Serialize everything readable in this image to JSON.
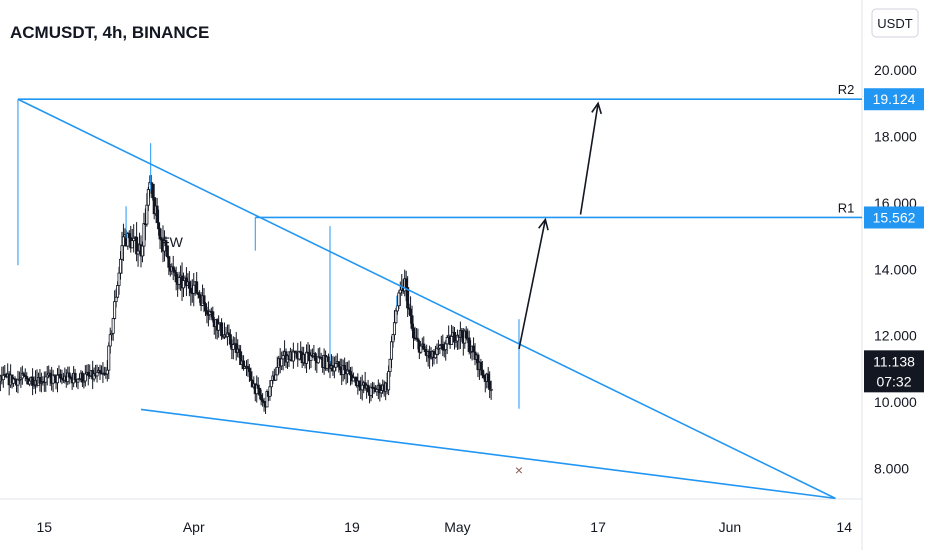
{
  "chart_data": {
    "type": "candlestick",
    "title": "ACMUSDT, 4h, BINANCE",
    "currency": "USDT",
    "y_axis": {
      "ticks": [
        "20.000",
        "18.000",
        "16.000",
        "14.000",
        "12.000",
        "10.000",
        "8.000"
      ],
      "tick_values": [
        20,
        18,
        16,
        14,
        12,
        10,
        8
      ],
      "range": [
        6.5,
        21.3
      ]
    },
    "x_axis": {
      "ticks": [
        "15",
        "Apr",
        "19",
        "May",
        "17",
        "Jun",
        "14"
      ],
      "tick_dates": [
        "2021-03-15",
        "2021-04-01",
        "2021-04-19",
        "2021-05-01",
        "2021-05-17",
        "2021-06-01",
        "2021-06-14"
      ],
      "range": [
        "2021-03-07",
        "2021-06-15"
      ]
    },
    "current_price": {
      "value": "11.138",
      "countdown": "07:32"
    },
    "pattern_label": "FW",
    "levels": [
      {
        "name": "R2",
        "value": "19.124",
        "start": "2021-03-12"
      },
      {
        "name": "R1",
        "value": "15.562",
        "start": "2021-04-08"
      }
    ],
    "trendlines": [
      {
        "name": "upper-trendline",
        "from": {
          "date": "2021-03-12",
          "price": 19.124
        },
        "to": {
          "date": "2021-06-13",
          "price": 7.1
        }
      },
      {
        "name": "lower-trendline",
        "from": {
          "date": "2021-03-26",
          "price": 9.78
        },
        "to": {
          "date": "2021-06-13",
          "price": 7.1
        }
      }
    ],
    "arrows": [
      {
        "from": {
          "date": "2021-05-08",
          "price": 11.6
        },
        "to": {
          "date": "2021-05-11",
          "price": 15.5
        }
      },
      {
        "from": {
          "date": "2021-05-15",
          "price": 15.65
        },
        "to": {
          "date": "2021-05-17",
          "price": 19.0
        }
      }
    ],
    "marker": {
      "symbol": "×",
      "date": "2021-05-08",
      "price": 7.95
    },
    "colors": {
      "trend_blue": "#2196f3",
      "axis_tag": "#2196f3",
      "price_tag": "#131722",
      "candles": "#131722",
      "marker": "#8d5a4b"
    }
  }
}
